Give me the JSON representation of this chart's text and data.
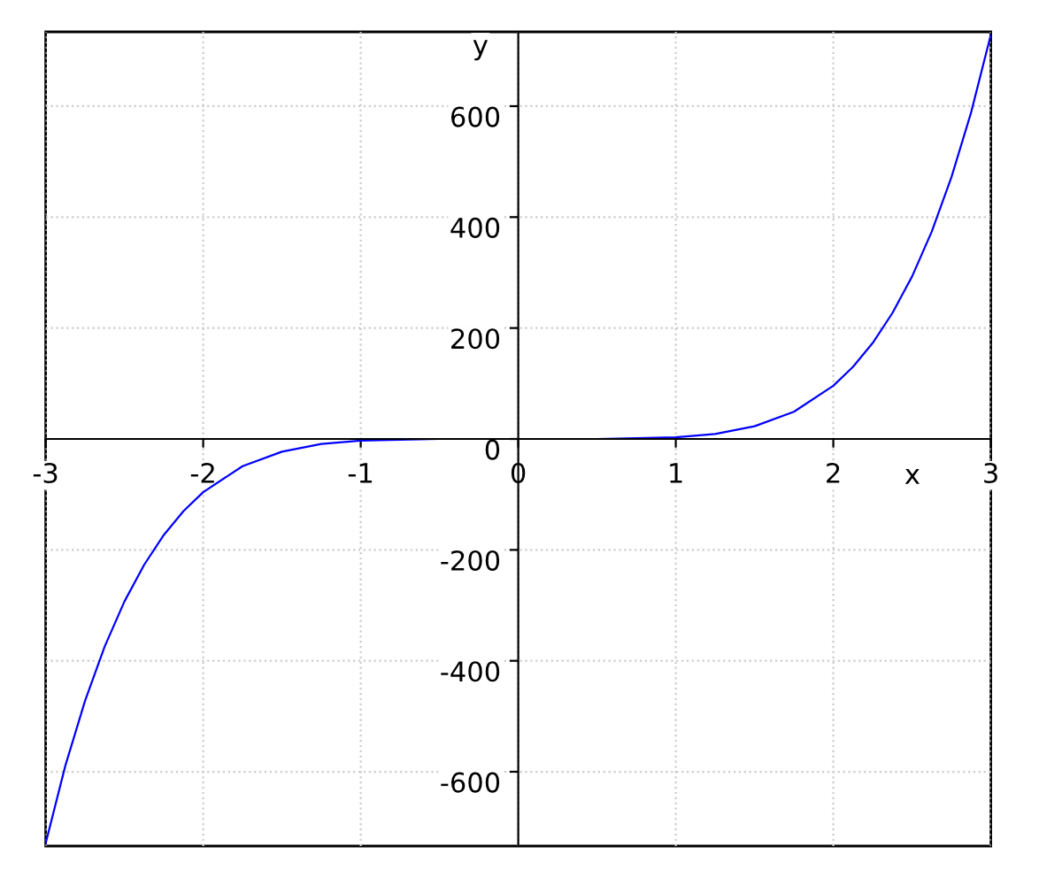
{
  "chart_data": {
    "type": "line",
    "xlabel": "x",
    "ylabel": "y",
    "series": [
      {
        "color": "#0000ff",
        "x": [
          -3,
          -2.875,
          -2.75,
          -2.625,
          -2.5,
          -2.375,
          -2.25,
          -2.125,
          -2,
          -1.75,
          -1.5,
          -1.25,
          -1,
          -0.5,
          0,
          0.5,
          1,
          1.25,
          1.5,
          1.75,
          2,
          2.125,
          2.25,
          2.375,
          2.5,
          2.625,
          2.75,
          2.875,
          3
        ],
        "values": [
          -729,
          -589,
          -472,
          -374,
          -293,
          -227,
          -173,
          -130,
          -96,
          -49,
          -23,
          -9,
          -3,
          0,
          0,
          0,
          3,
          9,
          23,
          49,
          96,
          130,
          173,
          227,
          293,
          374,
          472,
          589,
          729
        ]
      }
    ],
    "xlim": [
      -3,
      3
    ],
    "ylim": [
      -734,
      734
    ],
    "xticks": [
      -3,
      -2,
      -1,
      0,
      1,
      2,
      3
    ],
    "yticks": [
      -600,
      -400,
      -200,
      0,
      200,
      400,
      600
    ],
    "grid": true,
    "line_style": "solid",
    "marker": "none"
  }
}
